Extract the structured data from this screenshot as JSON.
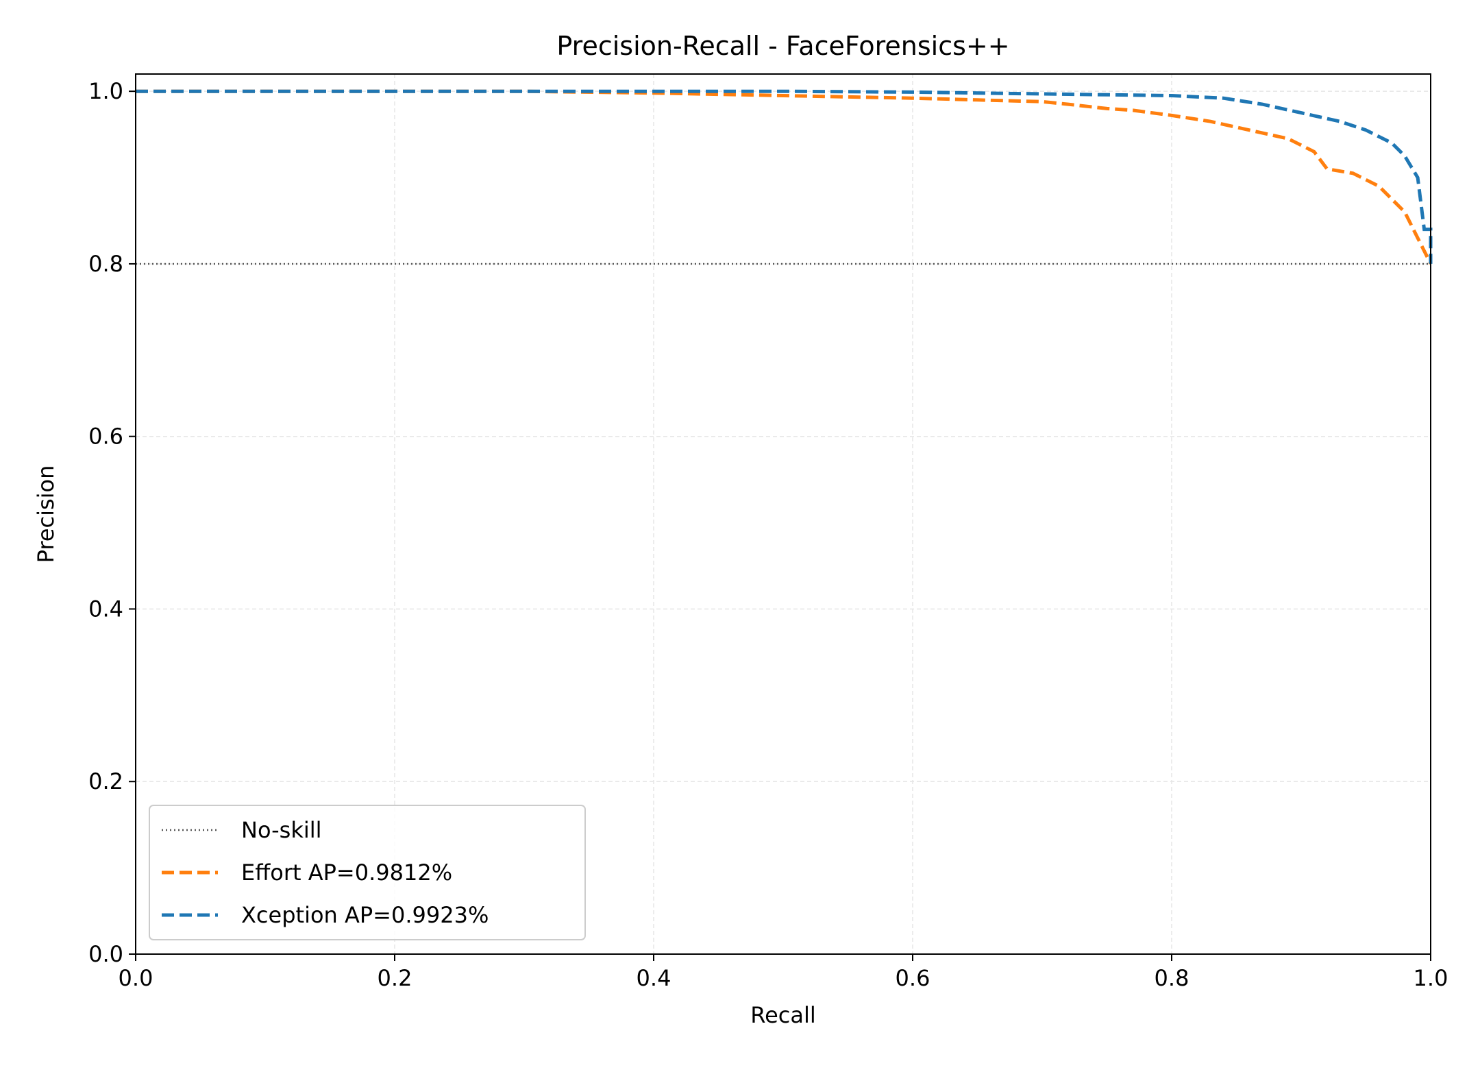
{
  "chart_data": {
    "type": "line",
    "title": "Precision-Recall - FaceForensics++",
    "xlabel": "Recall",
    "ylabel": "Precision",
    "xlim": [
      0.0,
      1.0
    ],
    "ylim": [
      0.0,
      1.02
    ],
    "xticks": [
      0.0,
      0.2,
      0.4,
      0.6,
      0.8,
      1.0
    ],
    "xtick_labels": [
      "0.0",
      "0.2",
      "0.4",
      "0.6",
      "0.8",
      "1.0"
    ],
    "yticks": [
      0.0,
      0.2,
      0.4,
      0.6,
      0.8,
      1.0
    ],
    "ytick_labels": [
      "0.0",
      "0.2",
      "0.4",
      "0.6",
      "0.8",
      "1.0"
    ],
    "grid": true,
    "legend_position": "lower-left",
    "baseline": {
      "name": "No-skill",
      "y": 0.8,
      "color": "#555555",
      "style": "dotted"
    },
    "series": [
      {
        "name": "Effort  AP=0.9812%",
        "color": "#ff7f0e",
        "style": "dashed",
        "points": [
          [
            0.0,
            1.0
          ],
          [
            0.3,
            1.0
          ],
          [
            0.4,
            0.998
          ],
          [
            0.5,
            0.995
          ],
          [
            0.6,
            0.992
          ],
          [
            0.65,
            0.99
          ],
          [
            0.7,
            0.988
          ],
          [
            0.72,
            0.985
          ],
          [
            0.75,
            0.98
          ],
          [
            0.77,
            0.978
          ],
          [
            0.8,
            0.972
          ],
          [
            0.83,
            0.965
          ],
          [
            0.86,
            0.955
          ],
          [
            0.89,
            0.945
          ],
          [
            0.91,
            0.93
          ],
          [
            0.92,
            0.91
          ],
          [
            0.94,
            0.905
          ],
          [
            0.96,
            0.89
          ],
          [
            0.98,
            0.86
          ],
          [
            0.99,
            0.83
          ],
          [
            1.0,
            0.8
          ]
        ]
      },
      {
        "name": "Xception  AP=0.9923%",
        "color": "#1f77b4",
        "style": "dashed",
        "points": [
          [
            0.0,
            1.0
          ],
          [
            0.5,
            1.0
          ],
          [
            0.6,
            0.999
          ],
          [
            0.7,
            0.997
          ],
          [
            0.8,
            0.995
          ],
          [
            0.84,
            0.992
          ],
          [
            0.87,
            0.985
          ],
          [
            0.9,
            0.975
          ],
          [
            0.93,
            0.965
          ],
          [
            0.95,
            0.955
          ],
          [
            0.97,
            0.94
          ],
          [
            0.98,
            0.925
          ],
          [
            0.99,
            0.9
          ],
          [
            0.995,
            0.84
          ],
          [
            1.0,
            0.84
          ],
          [
            1.0,
            0.8
          ]
        ]
      }
    ]
  }
}
